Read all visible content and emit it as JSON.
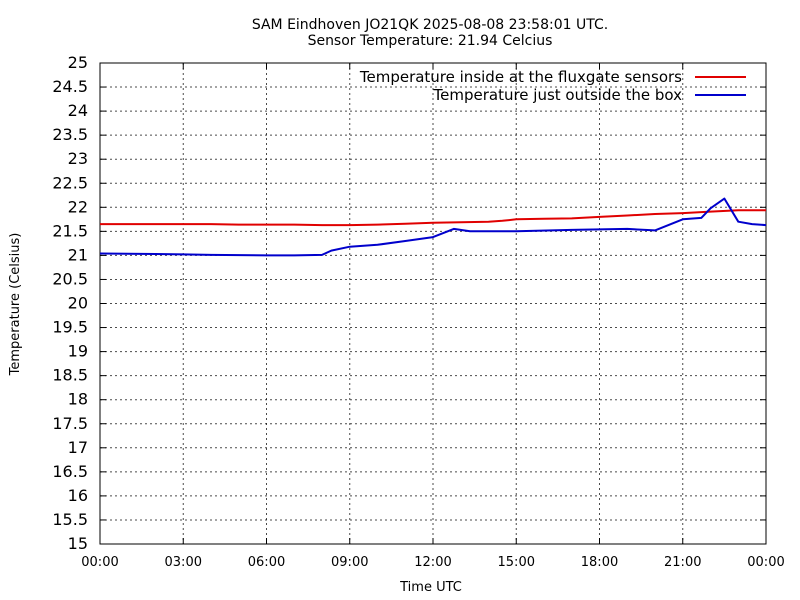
{
  "chart_data": {
    "type": "line",
    "title": "SAM Eindhoven JO21QK 2025-08-08 23:58:01 UTC.",
    "subtitle": "Sensor Temperature: 21.94 Celcius",
    "xlabel": "Time UTC",
    "ylabel": "Temperature (Celsius)",
    "xlim": [
      "00:00",
      "24:00"
    ],
    "ylim": [
      15,
      25
    ],
    "x_ticks": [
      "00:00",
      "03:00",
      "06:00",
      "09:00",
      "12:00",
      "15:00",
      "18:00",
      "21:00",
      "00:00"
    ],
    "y_ticks": [
      "15",
      "15.5",
      "16",
      "16.5",
      "17",
      "17.5",
      "18",
      "18.5",
      "19",
      "19.5",
      "20",
      "20.5",
      "21",
      "21.5",
      "22",
      "22.5",
      "23",
      "23.5",
      "24",
      "24.5",
      "25"
    ],
    "grid": true,
    "legend_position": "top-right",
    "series": [
      {
        "name": "Temperature inside at the fluxgate sensors",
        "color": "#e00000",
        "x": [
          "00:00",
          "01:00",
          "02:00",
          "03:00",
          "04:00",
          "05:00",
          "06:00",
          "07:00",
          "08:00",
          "09:00",
          "10:00",
          "11:00",
          "12:00",
          "13:00",
          "14:00",
          "14:30",
          "15:00",
          "16:00",
          "17:00",
          "18:00",
          "19:00",
          "20:00",
          "21:00",
          "22:00",
          "23:00",
          "24:00"
        ],
        "y": [
          21.65,
          21.65,
          21.65,
          21.65,
          21.65,
          21.64,
          21.64,
          21.64,
          21.63,
          21.63,
          21.64,
          21.66,
          21.68,
          21.69,
          21.7,
          21.72,
          21.75,
          21.76,
          21.77,
          21.8,
          21.83,
          21.86,
          21.88,
          21.91,
          21.94,
          21.94
        ]
      },
      {
        "name": "Temperature just outside the box",
        "color": "#0000cc",
        "x": [
          "00:00",
          "02:00",
          "03:00",
          "04:00",
          "06:00",
          "07:00",
          "08:00",
          "08:20",
          "09:00",
          "10:00",
          "11:00",
          "12:00",
          "12:45",
          "13:20",
          "15:00",
          "17:00",
          "19:00",
          "20:00",
          "21:00",
          "21:40",
          "22:00",
          "22:30",
          "23:00",
          "23:30",
          "24:00"
        ],
        "y": [
          21.04,
          21.03,
          21.02,
          21.01,
          21.0,
          21.0,
          21.01,
          21.1,
          21.18,
          21.22,
          21.3,
          21.38,
          21.55,
          21.5,
          21.5,
          21.53,
          21.55,
          21.52,
          21.75,
          21.78,
          21.98,
          22.18,
          21.7,
          21.65,
          21.63
        ]
      }
    ]
  }
}
